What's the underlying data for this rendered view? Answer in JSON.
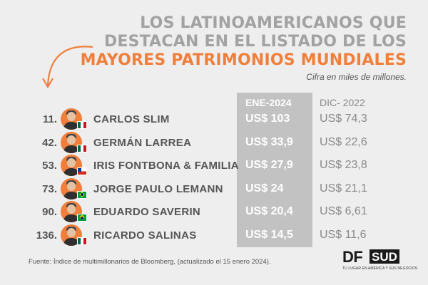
{
  "title": {
    "line1": "LOS LATINOAMERICANOS QUE",
    "line2": "DESTACAN EN EL LISTADO DE LOS",
    "line3": "MAYORES PATRIMONIOS MUNDIALES"
  },
  "subtitle": "Cifra en miles de millones.",
  "colors": {
    "accent": "#f07f3c",
    "title_gray": "#a2a2a2",
    "column_highlight": "#c2c2c2",
    "background": "#eeeeee"
  },
  "chart_data": {
    "type": "table",
    "columns": [
      "ENE-2024",
      "DIC- 2022"
    ],
    "rows": [
      {
        "rank": "11.",
        "name": "CARLOS SLIM",
        "flag": "mexico-flag",
        "ene_2024": "US$ 103",
        "dic_2022": "US$ 74,3"
      },
      {
        "rank": "42.",
        "name": "GERMÁN LARREA",
        "flag": "mexico-flag",
        "ene_2024": "US$ 33,9",
        "dic_2022": "US$ 22,6"
      },
      {
        "rank": "53.",
        "name": "IRIS FONTBONA & FAMILIA",
        "flag": "chile-flag",
        "ene_2024": "US$ 27,9",
        "dic_2022": "US$ 23,8"
      },
      {
        "rank": "73.",
        "name": "JORGE PAULO LEMANN",
        "flag": "brazil-flag",
        "ene_2024": "US$ 24",
        "dic_2022": "US$ 21,1"
      },
      {
        "rank": "90.",
        "name": "EDUARDO SAVERIN",
        "flag": "brazil-flag",
        "ene_2024": "US$ 20,4",
        "dic_2022": "US$ 6,61"
      },
      {
        "rank": "136.",
        "name": "RICARDO SALINAS",
        "flag": "mexico-flag",
        "ene_2024": "US$ 14,5",
        "dic_2022": "US$ 11,6"
      }
    ]
  },
  "source": "Fuente:  Índice de multimillonarios de Bloomberg, (actualizado el 15 enero 2024).",
  "logo": {
    "df": "DF",
    "sud": "SUD",
    "tagline": "TU LUGAR EN AMÉRICA Y SUS NEGOCIOS"
  },
  "icons": {
    "arrow": "curved-arrow-icon",
    "avatar": "person-photo-icon"
  }
}
